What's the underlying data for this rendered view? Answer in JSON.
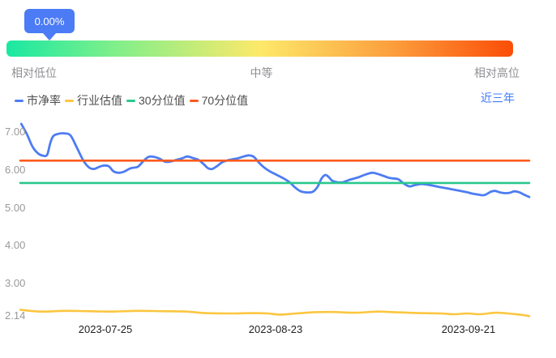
{
  "tooltip": {
    "value": "0.00%"
  },
  "valuation_bar": {
    "labels": {
      "low": "相对低位",
      "mid": "中等",
      "high": "相对高位"
    },
    "gradient_stops": [
      [
        "#19e8a2",
        0
      ],
      [
        "#7eef8b",
        21
      ],
      [
        "#fde96a",
        50
      ],
      [
        "#fc9f3d",
        76
      ],
      [
        "#fb4d08",
        100
      ]
    ]
  },
  "period_selector": {
    "label": "近三年"
  },
  "chart_data": {
    "type": "line",
    "title": "",
    "xlabel": "",
    "ylabel": "",
    "grid": false,
    "legend_position": "top-left",
    "ylim": [
      2.14,
      7.0
    ],
    "y_ticks": [
      {
        "label": "7.00",
        "value": 7.0
      },
      {
        "label": "6.00",
        "value": 6.0
      },
      {
        "label": "5.00",
        "value": 5.0
      },
      {
        "label": "4.00",
        "value": 4.0
      },
      {
        "label": "3.00",
        "value": 3.0
      },
      {
        "label": "2.14",
        "value": 2.14
      }
    ],
    "x_ticks": [
      {
        "label": "2023-07-25",
        "f": 0.167
      },
      {
        "label": "2023-08-23",
        "f": 0.502
      },
      {
        "label": "2023-09-21",
        "f": 0.881
      }
    ],
    "series": [
      {
        "name": "市净率",
        "color": "#4d7cf3",
        "width": 2.8,
        "points": [
          [
            0.002,
            7.22
          ],
          [
            0.013,
            6.95
          ],
          [
            0.024,
            6.62
          ],
          [
            0.035,
            6.44
          ],
          [
            0.045,
            6.38
          ],
          [
            0.053,
            6.41
          ],
          [
            0.059,
            6.72
          ],
          [
            0.065,
            6.9
          ],
          [
            0.075,
            6.96
          ],
          [
            0.088,
            6.97
          ],
          [
            0.099,
            6.91
          ],
          [
            0.111,
            6.6
          ],
          [
            0.124,
            6.25
          ],
          [
            0.135,
            6.07
          ],
          [
            0.145,
            6.03
          ],
          [
            0.154,
            6.08
          ],
          [
            0.164,
            6.12
          ],
          [
            0.174,
            6.1
          ],
          [
            0.183,
            5.97
          ],
          [
            0.193,
            5.93
          ],
          [
            0.204,
            5.96
          ],
          [
            0.217,
            6.05
          ],
          [
            0.231,
            6.09
          ],
          [
            0.242,
            6.24
          ],
          [
            0.252,
            6.35
          ],
          [
            0.263,
            6.35
          ],
          [
            0.274,
            6.3
          ],
          [
            0.285,
            6.22
          ],
          [
            0.296,
            6.23
          ],
          [
            0.307,
            6.27
          ],
          [
            0.318,
            6.31
          ],
          [
            0.328,
            6.36
          ],
          [
            0.339,
            6.32
          ],
          [
            0.35,
            6.27
          ],
          [
            0.36,
            6.16
          ],
          [
            0.369,
            6.05
          ],
          [
            0.377,
            6.03
          ],
          [
            0.387,
            6.11
          ],
          [
            0.397,
            6.21
          ],
          [
            0.411,
            6.27
          ],
          [
            0.427,
            6.31
          ],
          [
            0.439,
            6.36
          ],
          [
            0.449,
            6.39
          ],
          [
            0.459,
            6.35
          ],
          [
            0.468,
            6.21
          ],
          [
            0.479,
            6.07
          ],
          [
            0.49,
            5.97
          ],
          [
            0.503,
            5.88
          ],
          [
            0.516,
            5.79
          ],
          [
            0.529,
            5.68
          ],
          [
            0.54,
            5.54
          ],
          [
            0.551,
            5.44
          ],
          [
            0.564,
            5.41
          ],
          [
            0.575,
            5.43
          ],
          [
            0.584,
            5.56
          ],
          [
            0.592,
            5.78
          ],
          [
            0.599,
            5.87
          ],
          [
            0.605,
            5.83
          ],
          [
            0.613,
            5.72
          ],
          [
            0.623,
            5.68
          ],
          [
            0.634,
            5.68
          ],
          [
            0.646,
            5.74
          ],
          [
            0.662,
            5.8
          ],
          [
            0.678,
            5.88
          ],
          [
            0.691,
            5.93
          ],
          [
            0.702,
            5.9
          ],
          [
            0.713,
            5.85
          ],
          [
            0.726,
            5.79
          ],
          [
            0.742,
            5.76
          ],
          [
            0.753,
            5.65
          ],
          [
            0.764,
            5.57
          ],
          [
            0.774,
            5.6
          ],
          [
            0.786,
            5.63
          ],
          [
            0.798,
            5.62
          ],
          [
            0.814,
            5.58
          ],
          [
            0.829,
            5.54
          ],
          [
            0.845,
            5.5
          ],
          [
            0.861,
            5.46
          ],
          [
            0.876,
            5.42
          ],
          [
            0.888,
            5.38
          ],
          [
            0.901,
            5.35
          ],
          [
            0.912,
            5.34
          ],
          [
            0.925,
            5.43
          ],
          [
            0.933,
            5.45
          ],
          [
            0.943,
            5.41
          ],
          [
            0.952,
            5.39
          ],
          [
            0.962,
            5.4
          ],
          [
            0.971,
            5.44
          ],
          [
            0.981,
            5.41
          ],
          [
            0.99,
            5.35
          ],
          [
            1.0,
            5.29
          ]
        ]
      },
      {
        "name": "行业估值",
        "color": "#fbc640",
        "width": 2.6,
        "points": [
          [
            0.0,
            2.31
          ],
          [
            0.04,
            2.26
          ],
          [
            0.088,
            2.28
          ],
          [
            0.135,
            2.27
          ],
          [
            0.183,
            2.26
          ],
          [
            0.231,
            2.28
          ],
          [
            0.279,
            2.27
          ],
          [
            0.326,
            2.26
          ],
          [
            0.366,
            2.22
          ],
          [
            0.414,
            2.21
          ],
          [
            0.454,
            2.22
          ],
          [
            0.486,
            2.21
          ],
          [
            0.51,
            2.18
          ],
          [
            0.541,
            2.21
          ],
          [
            0.573,
            2.24
          ],
          [
            0.613,
            2.25
          ],
          [
            0.661,
            2.23
          ],
          [
            0.701,
            2.26
          ],
          [
            0.74,
            2.24
          ],
          [
            0.788,
            2.22
          ],
          [
            0.828,
            2.21
          ],
          [
            0.852,
            2.19
          ],
          [
            0.879,
            2.21
          ],
          [
            0.903,
            2.19
          ],
          [
            0.935,
            2.23
          ],
          [
            0.966,
            2.2
          ],
          [
            0.987,
            2.17
          ],
          [
            1.0,
            2.14
          ]
        ]
      },
      {
        "name": "30分位值",
        "color": "#29c88d",
        "width": 2.6,
        "points": [
          [
            0.0,
            5.66
          ],
          [
            1.0,
            5.66
          ]
        ]
      },
      {
        "name": "70分位值",
        "color": "#fb5b1d",
        "width": 2.6,
        "points": [
          [
            0.0,
            6.25
          ],
          [
            1.0,
            6.25
          ]
        ]
      }
    ]
  }
}
